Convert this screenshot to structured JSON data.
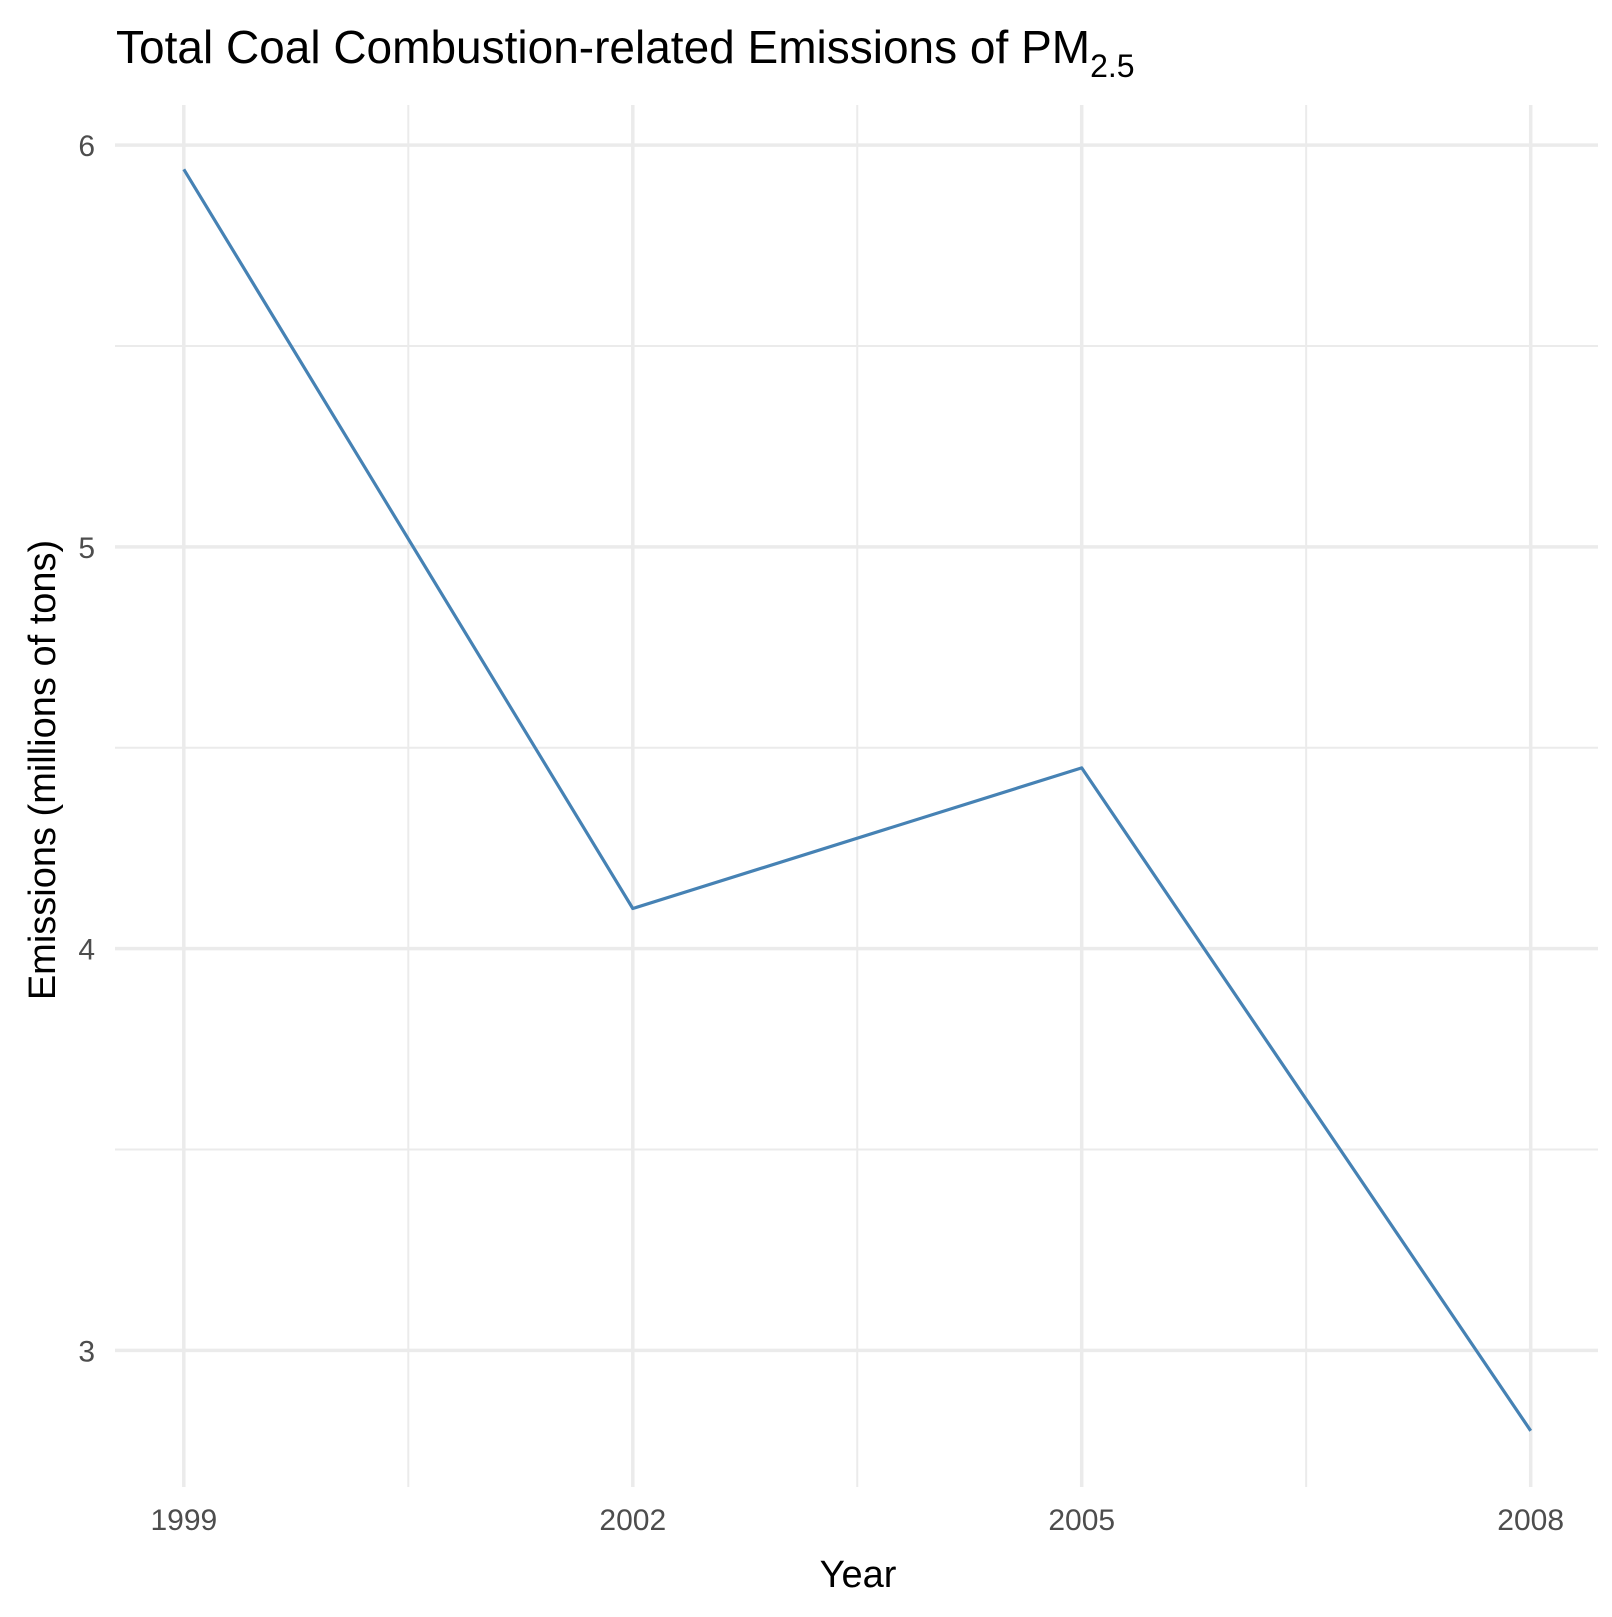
{
  "chart_data": {
    "type": "line",
    "title": "Total Coal Combustion-related Emissions of PM",
    "title_subscript": "2.5",
    "xlabel": "Year",
    "ylabel": "Emissions (millions of tons)",
    "x": [
      1999,
      2002,
      2005,
      2008
    ],
    "series": [
      {
        "values": [
          5.94,
          4.1,
          4.45,
          2.8
        ],
        "color": "#4682b4"
      }
    ],
    "xlim": [
      1998.54,
      2008.45
    ],
    "ylim": [
      2.66,
      6.1
    ],
    "x_ticks": [
      1999,
      2002,
      2005,
      2008
    ],
    "x_tick_labels": [
      "1999",
      "2002",
      "2005",
      "2008"
    ],
    "y_ticks": [
      3,
      4,
      5,
      6
    ],
    "y_tick_labels": [
      "3",
      "4",
      "5",
      "6"
    ],
    "grid": true,
    "legend": "none",
    "colors": {
      "line": "#4682b4",
      "grid": "#ebebeb",
      "tick_text": "#4d4d4d"
    }
  }
}
